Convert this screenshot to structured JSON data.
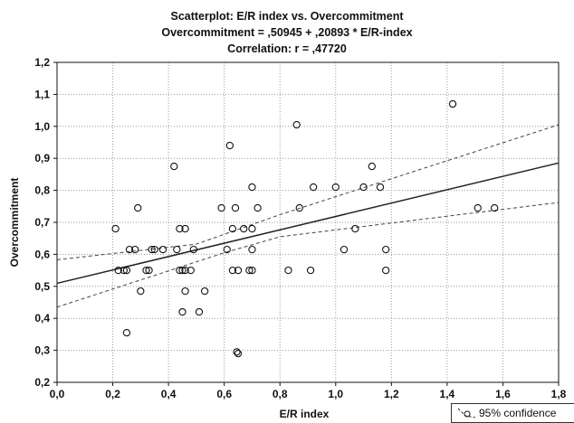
{
  "chart_data": {
    "type": "scatter",
    "title": "Scatterplot: E/R index vs. Overcommitment",
    "subtitle_equation": "Overcommitment = ,50945 + ,20893 * E/R-index",
    "subtitle_correlation": "Correlation: r = ,47720",
    "xlabel": "E/R index",
    "ylabel": "Overcommitment",
    "xlim": [
      0.0,
      1.8
    ],
    "ylim": [
      0.2,
      1.2
    ],
    "xticks": [
      "0,0",
      "0,2",
      "0,4",
      "0,6",
      "0,8",
      "1,0",
      "1,2",
      "1,4",
      "1,6",
      "1,8"
    ],
    "yticks": [
      "0,2",
      "0,3",
      "0,4",
      "0,5",
      "0,6",
      "0,7",
      "0,8",
      "0,9",
      "1,0",
      "1,1",
      "1,2"
    ],
    "grid": true,
    "regression": {
      "intercept": 0.50945,
      "slope": 0.20893
    },
    "confidence_band": {
      "lower": [
        [
          0.0,
          0.435
        ],
        [
          0.6,
          0.605
        ],
        [
          0.8,
          0.655
        ],
        [
          1.8,
          0.762
        ]
      ],
      "upper": [
        [
          0.0,
          0.583
        ],
        [
          0.5,
          0.632
        ],
        [
          0.8,
          0.724
        ],
        [
          1.8,
          1.005
        ]
      ]
    },
    "legend": {
      "label": "95% confidence",
      "position": "bottom-right"
    },
    "points": [
      [
        0.21,
        0.68
      ],
      [
        0.22,
        0.55
      ],
      [
        0.24,
        0.55
      ],
      [
        0.25,
        0.55
      ],
      [
        0.25,
        0.355
      ],
      [
        0.26,
        0.615
      ],
      [
        0.28,
        0.615
      ],
      [
        0.29,
        0.745
      ],
      [
        0.3,
        0.485
      ],
      [
        0.32,
        0.55
      ],
      [
        0.33,
        0.55
      ],
      [
        0.34,
        0.615
      ],
      [
        0.35,
        0.615
      ],
      [
        0.38,
        0.615
      ],
      [
        0.42,
        0.875
      ],
      [
        0.43,
        0.615
      ],
      [
        0.44,
        0.55
      ],
      [
        0.44,
        0.68
      ],
      [
        0.45,
        0.42
      ],
      [
        0.45,
        0.55
      ],
      [
        0.46,
        0.485
      ],
      [
        0.46,
        0.55
      ],
      [
        0.46,
        0.68
      ],
      [
        0.48,
        0.55
      ],
      [
        0.49,
        0.615
      ],
      [
        0.51,
        0.42
      ],
      [
        0.53,
        0.485
      ],
      [
        0.59,
        0.745
      ],
      [
        0.61,
        0.615
      ],
      [
        0.62,
        0.94
      ],
      [
        0.63,
        0.68
      ],
      [
        0.63,
        0.55
      ],
      [
        0.64,
        0.745
      ],
      [
        0.645,
        0.295
      ],
      [
        0.65,
        0.29
      ],
      [
        0.65,
        0.55
      ],
      [
        0.67,
        0.68
      ],
      [
        0.69,
        0.55
      ],
      [
        0.7,
        0.68
      ],
      [
        0.7,
        0.55
      ],
      [
        0.7,
        0.615
      ],
      [
        0.7,
        0.81
      ],
      [
        0.72,
        0.745
      ],
      [
        0.83,
        0.55
      ],
      [
        0.86,
        1.005
      ],
      [
        0.87,
        0.745
      ],
      [
        0.91,
        0.55
      ],
      [
        0.92,
        0.81
      ],
      [
        1.0,
        0.81
      ],
      [
        1.03,
        0.615
      ],
      [
        1.07,
        0.68
      ],
      [
        1.1,
        0.81
      ],
      [
        1.13,
        0.875
      ],
      [
        1.16,
        0.81
      ],
      [
        1.18,
        0.615
      ],
      [
        1.18,
        0.55
      ],
      [
        1.42,
        1.07
      ],
      [
        1.51,
        0.745
      ],
      [
        1.57,
        0.745
      ]
    ]
  }
}
